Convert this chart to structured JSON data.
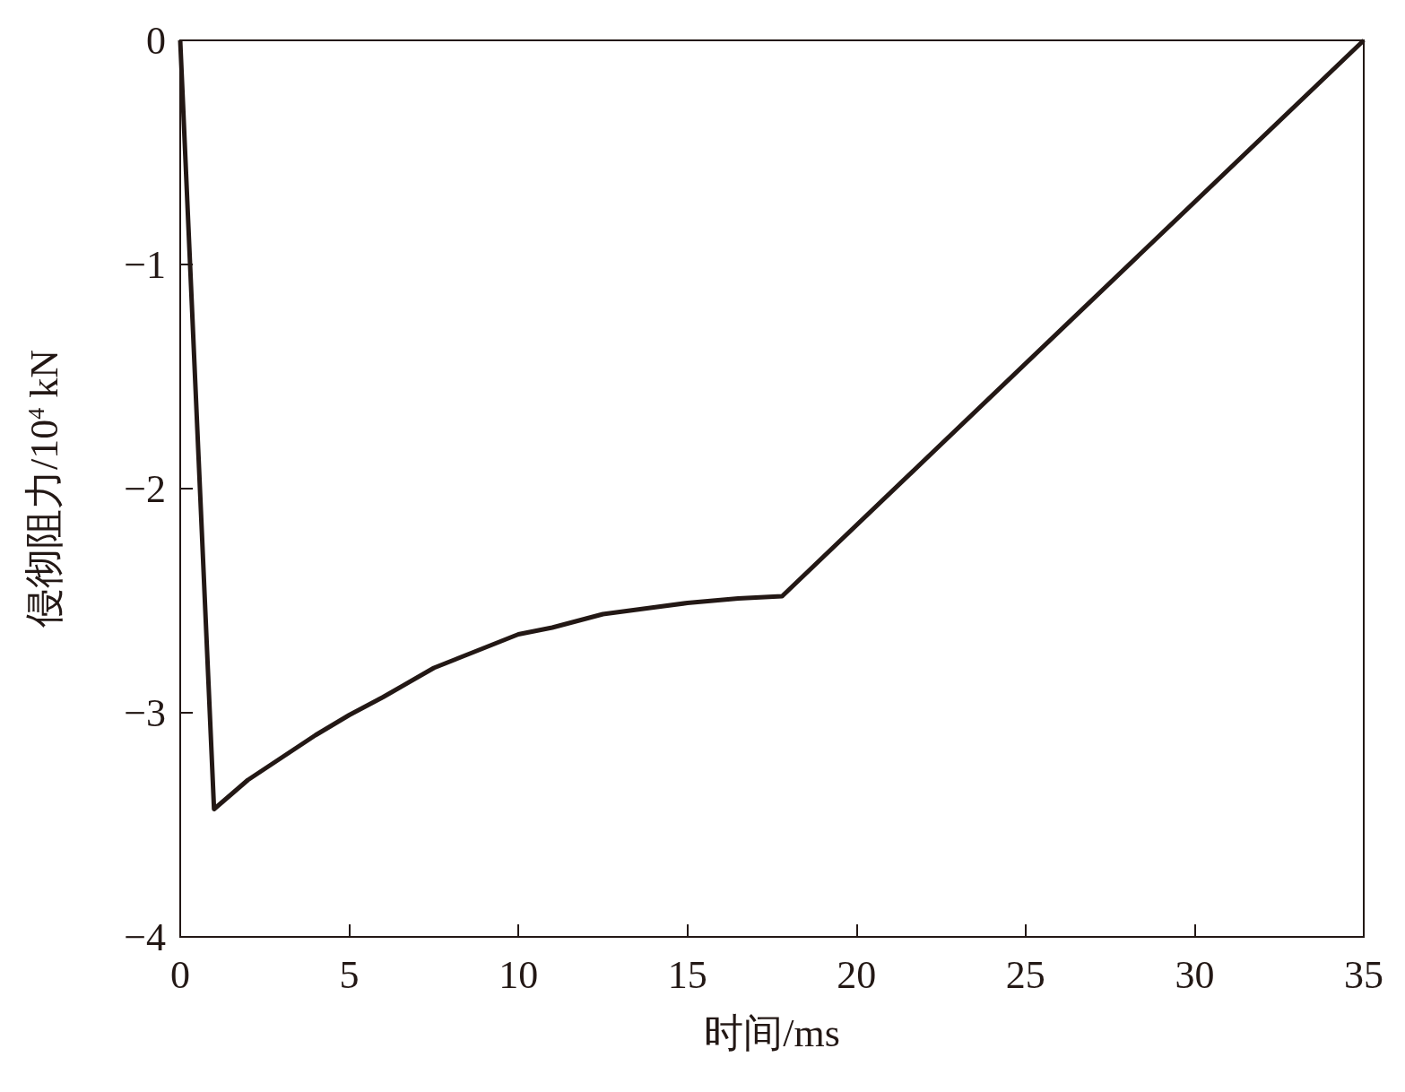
{
  "chart_data": {
    "type": "line",
    "xlabel": "时间/ms",
    "ylabel": "侵彻阻力/10$^{4}$ kN",
    "color": "#231815",
    "marker": "none",
    "line_style": "solid",
    "grid": false,
    "x": [
      0,
      1.0,
      2,
      3,
      4,
      5,
      6,
      7.5,
      9,
      10,
      11,
      12.5,
      14,
      15,
      16.5,
      17.8,
      35
    ],
    "values": [
      0,
      -3.43,
      -3.3,
      -3.2,
      -3.1,
      -3.01,
      -2.93,
      -2.8,
      -2.71,
      -2.65,
      -2.62,
      -2.56,
      -2.53,
      -2.51,
      -2.49,
      -2.48,
      0
    ],
    "xlim": [
      0,
      35
    ],
    "xticks": [
      0,
      5,
      10,
      15,
      20,
      25,
      30,
      35
    ],
    "ylim": [
      -4,
      0
    ],
    "yticks": [
      {
        "value": -4,
        "label": "−4"
      },
      {
        "value": -3,
        "label": "−3"
      },
      {
        "value": -2,
        "label": "−2"
      },
      {
        "value": -1,
        "label": "−1"
      },
      0
    ]
  }
}
